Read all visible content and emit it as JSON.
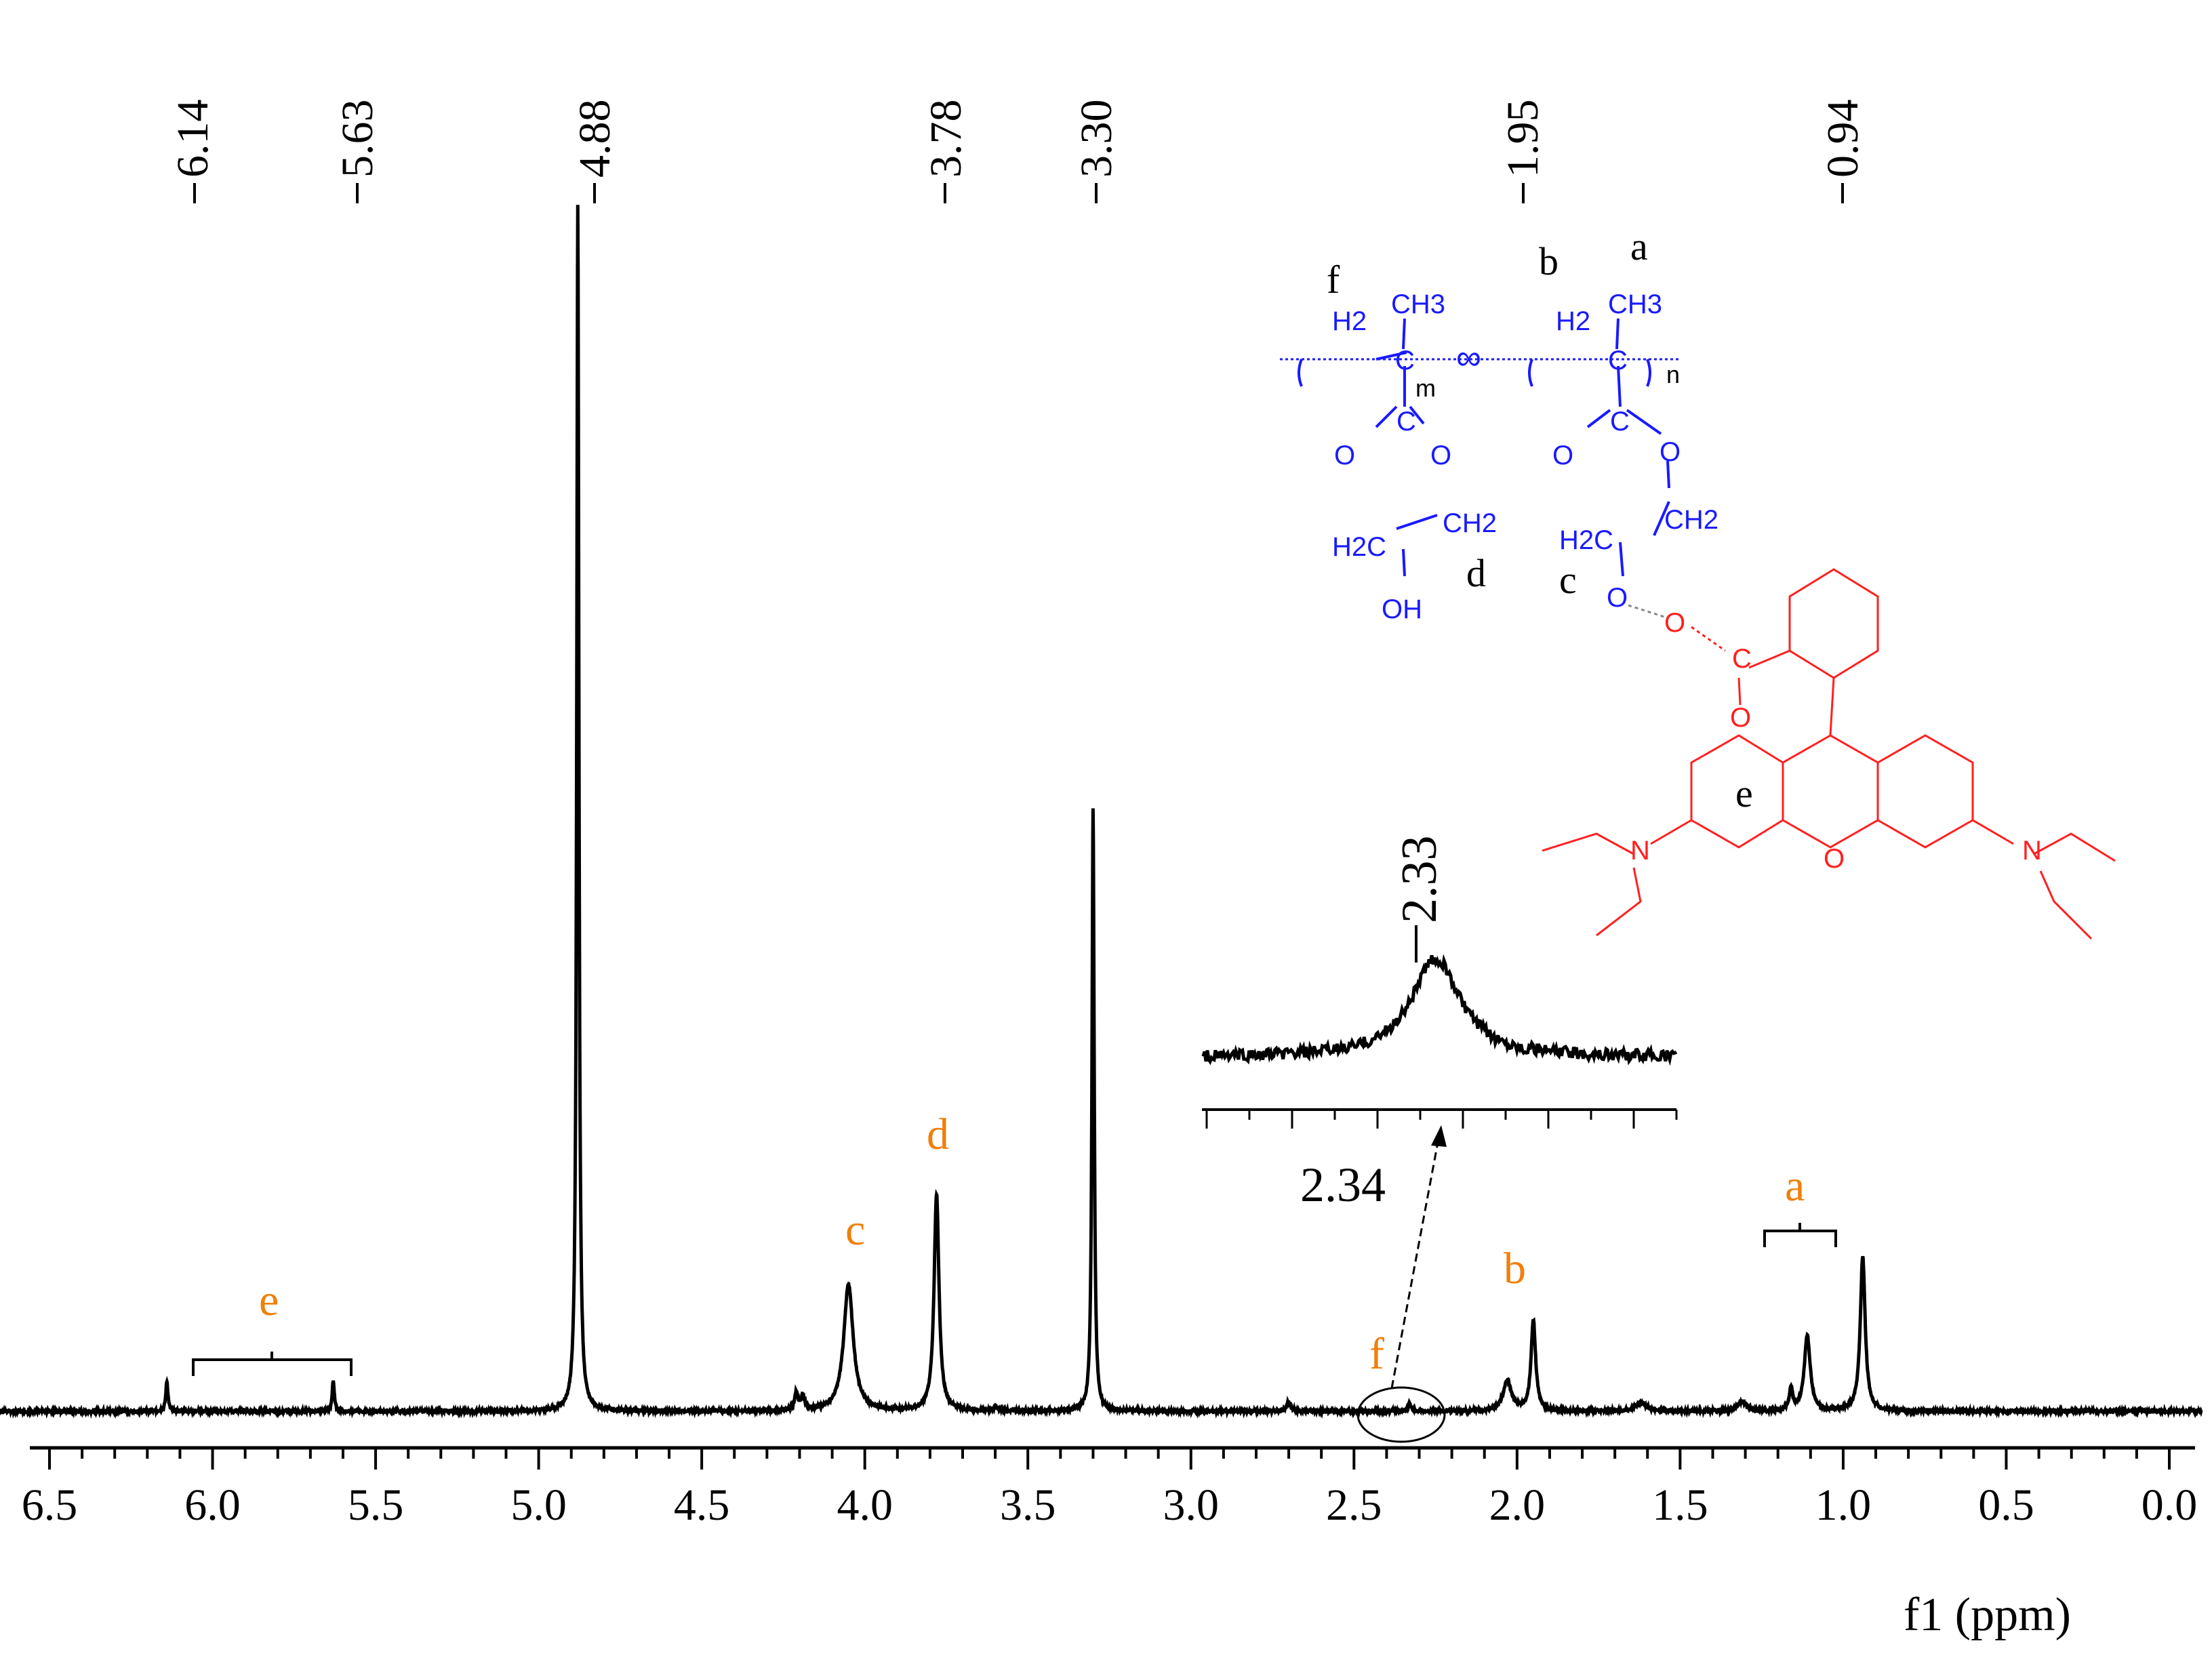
{
  "chart_data": {
    "type": "line",
    "title": "",
    "xlabel": "f1 (ppm)",
    "ylabel": "",
    "x_reversed": true,
    "xlim": [
      6.7,
      -0.1
    ],
    "xticks": [
      "6.5",
      "6.0",
      "5.5",
      "5.0",
      "4.5",
      "4.0",
      "3.5",
      "3.0",
      "2.5",
      "2.0",
      "1.5",
      "1.0",
      "0.5",
      "0.0"
    ],
    "peak_labels": [
      "6.14",
      "5.63",
      "4.88",
      "3.78",
      "3.30",
      "1.95",
      "0.94"
    ],
    "peaks": [
      {
        "x": 6.14,
        "height": 0.025,
        "width": 0.008
      },
      {
        "x": 5.63,
        "height": 0.025,
        "width": 0.008
      },
      {
        "x": 4.88,
        "height": 1.0,
        "width": 0.008
      },
      {
        "x": 4.21,
        "height": 0.015,
        "width": 0.012
      },
      {
        "x": 4.19,
        "height": 0.012,
        "width": 0.012
      },
      {
        "x": 4.05,
        "height": 0.105,
        "width": 0.035
      },
      {
        "x": 3.78,
        "height": 0.18,
        "width": 0.018
      },
      {
        "x": 3.6,
        "height": 0.004,
        "width": 0.01
      },
      {
        "x": 3.3,
        "height": 0.5,
        "width": 0.008
      },
      {
        "x": 2.7,
        "height": 0.008,
        "width": 0.015
      },
      {
        "x": 2.33,
        "height": 0.006,
        "width": 0.012
      },
      {
        "x": 2.03,
        "height": 0.025,
        "width": 0.03
      },
      {
        "x": 1.95,
        "height": 0.075,
        "width": 0.017
      },
      {
        "x": 1.62,
        "height": 0.007,
        "width": 0.04
      },
      {
        "x": 1.31,
        "height": 0.008,
        "width": 0.03
      },
      {
        "x": 1.16,
        "height": 0.018,
        "width": 0.012
      },
      {
        "x": 1.11,
        "height": 0.062,
        "width": 0.022
      },
      {
        "x": 0.94,
        "height": 0.128,
        "width": 0.018
      },
      {
        "x": 0.09,
        "height": 0.002,
        "width": 0.01
      }
    ],
    "annotations": {
      "letters": [
        "e",
        "d",
        "c",
        "f",
        "b",
        "a"
      ],
      "inset_label": "2.33",
      "callout_label": "2.34"
    }
  },
  "structure": {
    "top_labels": [
      "f",
      "b",
      "a"
    ],
    "unit_labels": [
      "d",
      "c",
      "e"
    ],
    "atoms": [
      "H2",
      "CH3",
      "C",
      "m",
      "∞",
      "H2",
      "CH3",
      "C",
      "n",
      "C",
      "O",
      "O",
      "C",
      "O",
      "O",
      "H2C",
      "CH2",
      "H2C",
      "CH2",
      "OH",
      "O",
      "O",
      "C",
      "O",
      "O",
      "N",
      "N"
    ]
  },
  "colors": {
    "spectrum": "#000000",
    "labels": "#f07f09",
    "polymer": "#1a1aff",
    "dye": "#ff2020"
  }
}
